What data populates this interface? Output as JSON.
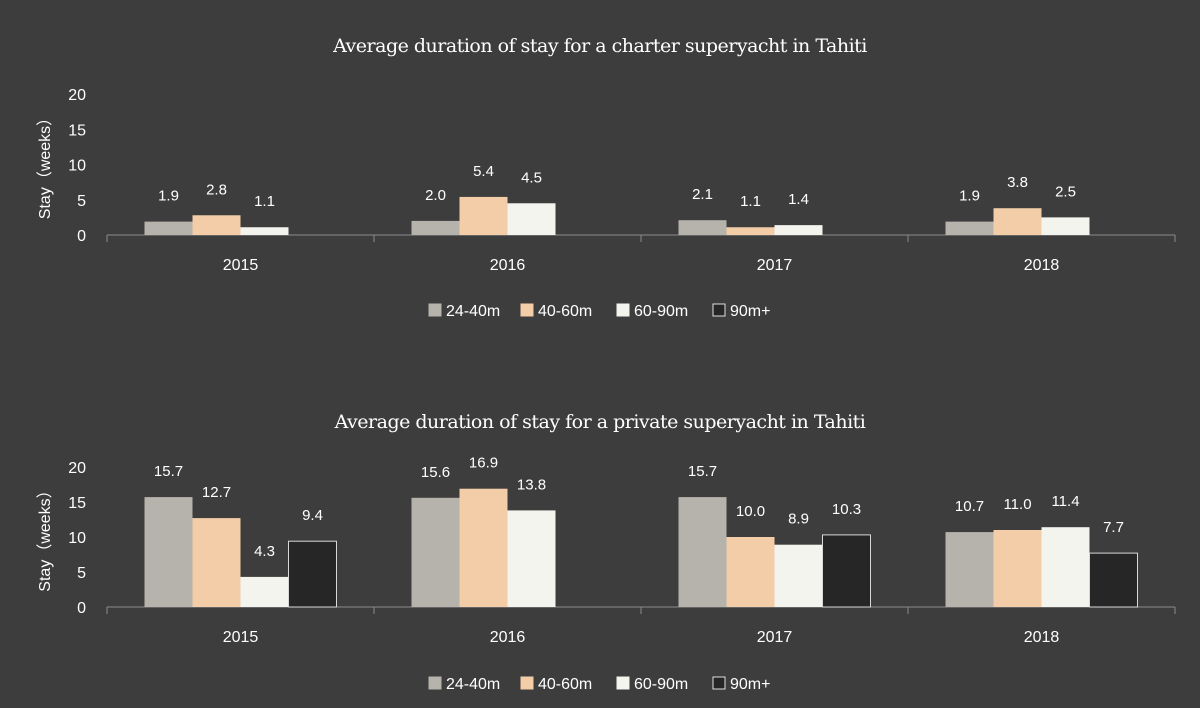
{
  "colors": {
    "background": "#3d3d3d",
    "axis": "#8a8a8a",
    "series": [
      "#b6b3ac",
      "#f2cda8",
      "#f4f4ef",
      "#262626"
    ],
    "series_stroke": [
      "#b6b3ac",
      "#f2cda8",
      "#f4f4ef",
      "#d8d8d8"
    ]
  },
  "chart_data": [
    {
      "type": "bar",
      "title": "Average duration of stay for a charter superyacht in Tahiti",
      "ylabel": "Stay（weeks）",
      "xlabel": "",
      "ylim": [
        0,
        20
      ],
      "yticks": [
        "0",
        "5",
        "10",
        "15",
        "20"
      ],
      "categories": [
        "2015",
        "2016",
        "2017",
        "2018"
      ],
      "legend_position": "bottom",
      "grid": false,
      "series": [
        {
          "name": "24-40m",
          "values": [
            1.9,
            2.0,
            2.1,
            1.9
          ],
          "labels": [
            "1.9",
            "2.0",
            "2.1",
            "1.9"
          ]
        },
        {
          "name": "40-60m",
          "values": [
            2.8,
            5.4,
            1.1,
            3.8
          ],
          "labels": [
            "2.8",
            "5.4",
            "1.1",
            "3.8"
          ]
        },
        {
          "name": "60-90m",
          "values": [
            1.1,
            4.5,
            1.4,
            2.5
          ],
          "labels": [
            "1.1",
            "4.5",
            "1.4",
            "2.5"
          ]
        },
        {
          "name": "90m+",
          "values": [
            null,
            null,
            null,
            null
          ],
          "labels": [
            "",
            "",
            "",
            ""
          ]
        }
      ]
    },
    {
      "type": "bar",
      "title": "Average duration of stay for a private superyacht in Tahiti",
      "ylabel": "Stay（weeks）",
      "xlabel": "",
      "ylim": [
        0,
        20
      ],
      "yticks": [
        "0",
        "5",
        "10",
        "15",
        "20"
      ],
      "categories": [
        "2015",
        "2016",
        "2017",
        "2018"
      ],
      "legend_position": "bottom",
      "grid": false,
      "series": [
        {
          "name": "24-40m",
          "values": [
            15.7,
            15.6,
            15.7,
            10.7
          ],
          "labels": [
            "15.7",
            "15.6",
            "15.7",
            "10.7"
          ]
        },
        {
          "name": "40-60m",
          "values": [
            12.7,
            16.9,
            10.0,
            11.0
          ],
          "labels": [
            "12.7",
            "16.9",
            "10.0",
            "11.0"
          ]
        },
        {
          "name": "60-90m",
          "values": [
            4.3,
            13.8,
            8.9,
            11.4
          ],
          "labels": [
            "4.3",
            "13.8",
            "8.9",
            "11.4"
          ]
        },
        {
          "name": "90m+",
          "values": [
            9.4,
            null,
            10.3,
            7.7
          ],
          "labels": [
            "9.4",
            "",
            "10.3",
            "7.7"
          ]
        }
      ]
    }
  ]
}
